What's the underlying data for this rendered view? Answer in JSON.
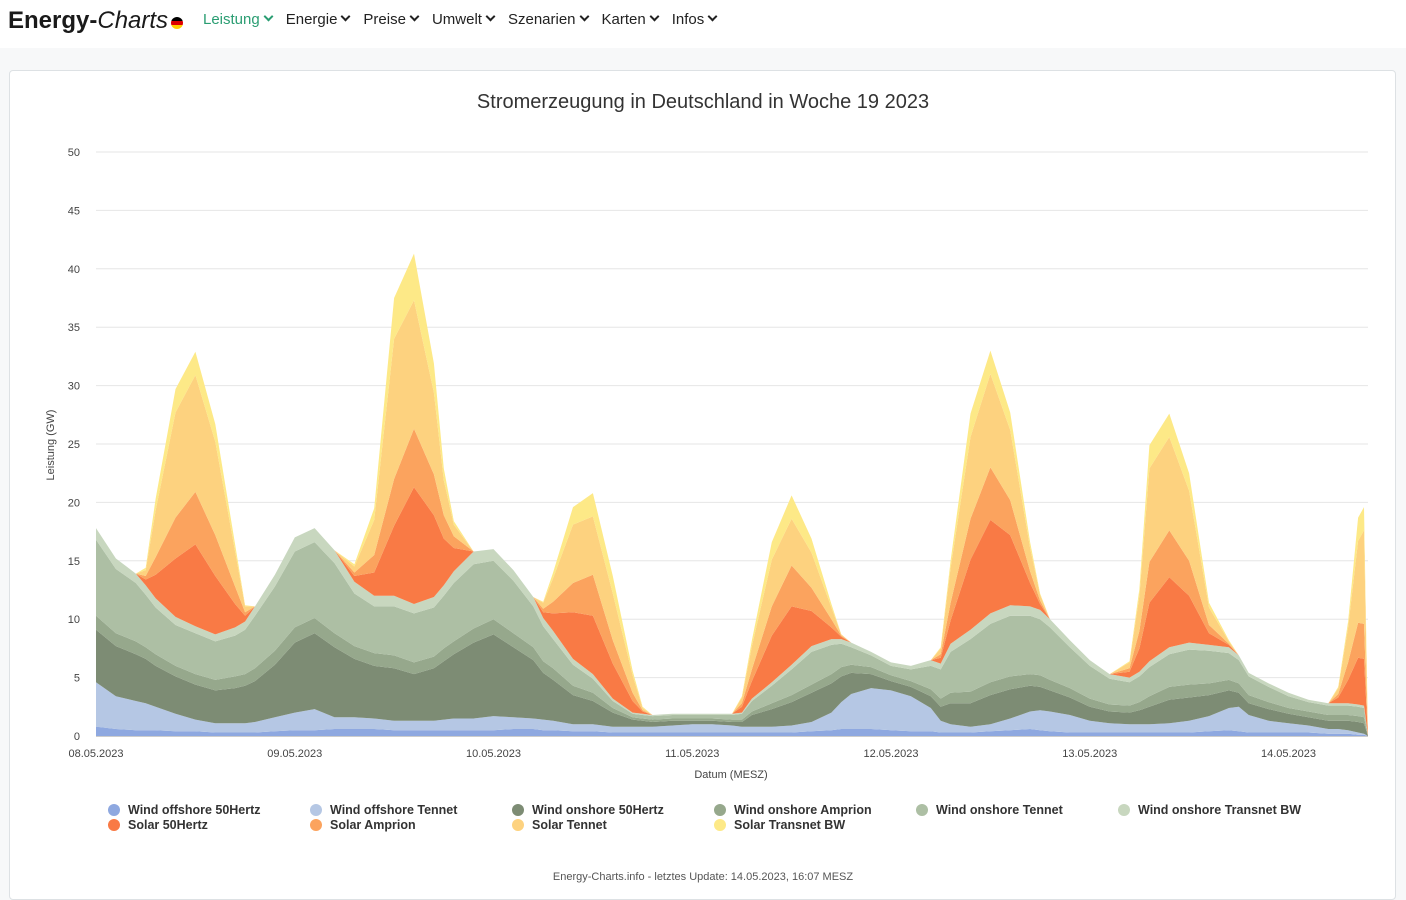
{
  "brand": {
    "bold": "Energy-",
    "italic": "Charts"
  },
  "nav": [
    {
      "label": "Leistung",
      "active": true
    },
    {
      "label": "Energie"
    },
    {
      "label": "Preise"
    },
    {
      "label": "Umwelt"
    },
    {
      "label": "Szenarien"
    },
    {
      "label": "Karten"
    },
    {
      "label": "Infos"
    }
  ],
  "footer": "Energy-Charts.info - letztes Update: 14.05.2023, 16:07 MESZ",
  "chart_data": {
    "type": "area",
    "title": "Stromerzeugung in Deutschland in Woche 19 2023",
    "xlabel": "Datum (MESZ)",
    "ylabel": "Leistung (GW)",
    "ylim": [
      0,
      50
    ],
    "yticks": [
      0,
      5,
      10,
      15,
      20,
      25,
      30,
      35,
      40,
      45,
      50
    ],
    "xlim": [
      0,
      6.4
    ],
    "xtick_labels": [
      "08.05.2023",
      "09.05.2023",
      "10.05.2023",
      "11.05.2023",
      "12.05.2023",
      "13.05.2023",
      "14.05.2023"
    ],
    "x": [
      0,
      0.1,
      0.2,
      0.25,
      0.3,
      0.4,
      0.5,
      0.6,
      0.7,
      0.75,
      0.8,
      0.9,
      1.0,
      1.1,
      1.2,
      1.3,
      1.4,
      1.5,
      1.6,
      1.7,
      1.75,
      1.8,
      1.9,
      2.0,
      2.1,
      2.2,
      2.25,
      2.3,
      2.4,
      2.5,
      2.6,
      2.7,
      2.75,
      2.8,
      2.9,
      3.0,
      3.1,
      3.2,
      3.25,
      3.3,
      3.4,
      3.5,
      3.6,
      3.7,
      3.75,
      3.8,
      3.9,
      4.0,
      4.1,
      4.2,
      4.25,
      4.3,
      4.4,
      4.5,
      4.6,
      4.7,
      4.75,
      4.8,
      4.9,
      5.0,
      5.1,
      5.2,
      5.25,
      5.3,
      5.4,
      5.5,
      5.6,
      5.7,
      5.75,
      5.8,
      5.9,
      6.0,
      6.1,
      6.2,
      6.25,
      6.3,
      6.35,
      6.38,
      6.4
    ],
    "series": [
      {
        "name": "Wind offshore 50Hertz",
        "color": "#8ea8e0",
        "values": [
          0.8,
          0.6,
          0.5,
          0.5,
          0.5,
          0.4,
          0.4,
          0.3,
          0.3,
          0.3,
          0.3,
          0.4,
          0.5,
          0.5,
          0.6,
          0.6,
          0.6,
          0.5,
          0.5,
          0.5,
          0.5,
          0.5,
          0.5,
          0.5,
          0.6,
          0.6,
          0.5,
          0.5,
          0.4,
          0.4,
          0.3,
          0.3,
          0.3,
          0.3,
          0.3,
          0.3,
          0.3,
          0.3,
          0.3,
          0.3,
          0.3,
          0.3,
          0.4,
          0.5,
          0.6,
          0.6,
          0.6,
          0.5,
          0.4,
          0.4,
          0.3,
          0.3,
          0.3,
          0.4,
          0.5,
          0.6,
          0.5,
          0.4,
          0.3,
          0.3,
          0.3,
          0.3,
          0.3,
          0.3,
          0.3,
          0.3,
          0.4,
          0.5,
          0.4,
          0.3,
          0.3,
          0.3,
          0.3,
          0.2,
          0.2,
          0.2,
          0.1,
          0.1,
          0
        ]
      },
      {
        "name": "Wind offshore Tennet",
        "color": "#b5c7e4",
        "values": [
          3.8,
          2.8,
          2.5,
          2.3,
          2.0,
          1.5,
          1.0,
          0.8,
          0.8,
          0.8,
          0.9,
          1.2,
          1.5,
          1.8,
          1.0,
          1.0,
          0.9,
          0.8,
          0.8,
          0.8,
          0.9,
          1.0,
          1.0,
          1.2,
          1.0,
          0.9,
          0.9,
          0.8,
          0.6,
          0.6,
          0.5,
          0.5,
          0.5,
          0.5,
          0.6,
          0.7,
          0.7,
          0.6,
          0.5,
          0.5,
          0.5,
          0.6,
          0.8,
          1.5,
          2.3,
          3.0,
          3.5,
          3.4,
          3.0,
          2.0,
          1.0,
          0.7,
          0.5,
          0.6,
          1.0,
          1.5,
          1.7,
          1.7,
          1.5,
          1.0,
          0.8,
          0.7,
          0.7,
          0.7,
          0.8,
          1.0,
          1.3,
          1.9,
          2.1,
          1.5,
          1.0,
          0.8,
          0.6,
          0.4,
          0.4,
          0.3,
          0.2,
          0.1,
          0
        ]
      },
      {
        "name": "Wind onshore 50Hertz",
        "color": "#7d8c74",
        "values": [
          4.5,
          4.3,
          4.0,
          3.8,
          3.5,
          3.2,
          3.0,
          2.8,
          3.0,
          3.2,
          3.5,
          4.5,
          6.0,
          6.5,
          6.0,
          5.0,
          4.5,
          4.5,
          4.0,
          4.5,
          5.0,
          5.5,
          6.5,
          7.0,
          6.0,
          5.0,
          4.0,
          3.5,
          2.5,
          2.0,
          1.2,
          0.6,
          0.5,
          0.4,
          0.4,
          0.3,
          0.3,
          0.3,
          0.4,
          1.0,
          1.5,
          2.0,
          2.5,
          2.5,
          2.2,
          1.8,
          1.2,
          0.8,
          0.8,
          1.0,
          1.2,
          1.8,
          2.0,
          2.5,
          2.5,
          2.2,
          2.0,
          1.8,
          1.5,
          1.2,
          1.0,
          1.0,
          1.2,
          1.5,
          2.0,
          2.0,
          1.8,
          1.5,
          1.2,
          1.0,
          1.0,
          0.8,
          0.7,
          0.7,
          0.7,
          0.8,
          0.9,
          0.9,
          0
        ]
      },
      {
        "name": "Wind onshore Amprion",
        "color": "#96a88c",
        "values": [
          1.2,
          1.1,
          1.1,
          1.0,
          1.0,
          0.9,
          0.9,
          0.9,
          1.0,
          1.0,
          1.1,
          1.2,
          1.3,
          1.3,
          1.2,
          1.1,
          1.1,
          1.1,
          1.0,
          1.0,
          1.1,
          1.1,
          1.2,
          1.3,
          1.2,
          1.1,
          1.0,
          1.0,
          0.8,
          0.7,
          0.4,
          0.2,
          0.2,
          0.2,
          0.2,
          0.2,
          0.2,
          0.2,
          0.2,
          0.3,
          0.5,
          0.6,
          0.7,
          0.8,
          0.8,
          0.7,
          0.6,
          0.5,
          0.5,
          0.6,
          0.7,
          0.9,
          1.0,
          1.1,
          1.1,
          1.0,
          1.0,
          0.9,
          0.8,
          0.7,
          0.6,
          0.6,
          0.7,
          0.9,
          1.1,
          1.1,
          1.0,
          0.9,
          0.8,
          0.7,
          0.6,
          0.5,
          0.5,
          0.5,
          0.5,
          0.5,
          0.5,
          0.5,
          0
        ]
      },
      {
        "name": "Wind onshore Tennet",
        "color": "#adbfa4",
        "values": [
          6.5,
          5.5,
          5.0,
          4.5,
          4.0,
          3.5,
          3.5,
          3.3,
          3.5,
          3.8,
          4.5,
          5.5,
          6.5,
          6.5,
          6.0,
          4.5,
          4.0,
          4.2,
          4.2,
          4.2,
          4.5,
          5.0,
          5.5,
          5.0,
          4.5,
          3.5,
          3.0,
          2.5,
          1.8,
          1.2,
          0.6,
          0.3,
          0.3,
          0.3,
          0.3,
          0.3,
          0.3,
          0.4,
          0.5,
          0.9,
          1.5,
          2.2,
          2.8,
          2.5,
          2.0,
          1.5,
          1.0,
          0.8,
          1.0,
          2.0,
          2.5,
          3.5,
          4.5,
          5.0,
          5.2,
          5.0,
          4.8,
          4.5,
          3.5,
          2.8,
          2.2,
          2.0,
          2.2,
          2.5,
          2.8,
          3.0,
          2.8,
          2.3,
          2.0,
          1.6,
          1.3,
          1.0,
          0.8,
          0.8,
          0.8,
          0.8,
          0.8,
          0.8,
          0
        ]
      },
      {
        "name": "Wind onshore Transnet BW",
        "color": "#c8d7bf",
        "values": [
          1.0,
          0.9,
          0.8,
          0.8,
          0.8,
          0.7,
          0.6,
          0.6,
          0.7,
          0.7,
          0.8,
          1.0,
          1.2,
          1.2,
          1.1,
          1.0,
          0.9,
          0.9,
          0.8,
          0.9,
          0.9,
          1.0,
          1.1,
          1.0,
          0.9,
          0.8,
          0.7,
          0.7,
          0.5,
          0.4,
          0.2,
          0.1,
          0.1,
          0.1,
          0.1,
          0.1,
          0.1,
          0.1,
          0.1,
          0.2,
          0.3,
          0.4,
          0.5,
          0.5,
          0.4,
          0.4,
          0.3,
          0.3,
          0.3,
          0.5,
          0.5,
          0.7,
          0.8,
          0.9,
          0.9,
          0.8,
          0.8,
          0.7,
          0.6,
          0.5,
          0.4,
          0.4,
          0.4,
          0.5,
          0.6,
          0.6,
          0.5,
          0.5,
          0.4,
          0.3,
          0.3,
          0.3,
          0.2,
          0.2,
          0.2,
          0.2,
          0.2,
          0.2,
          0
        ]
      },
      {
        "name": "Solar 50Hertz",
        "color": "#f97a45",
        "values": [
          0,
          0,
          0,
          0.5,
          2,
          5,
          7,
          5,
          2,
          0.5,
          0,
          0,
          0,
          0,
          0,
          0.5,
          2,
          6,
          10,
          7,
          4,
          2,
          0,
          0,
          0,
          0,
          0.5,
          1.5,
          4,
          5,
          3,
          1,
          0.2,
          0,
          0,
          0,
          0,
          0,
          0.5,
          1.5,
          4,
          5,
          3,
          1,
          0.2,
          0,
          0,
          0,
          0,
          0,
          0.5,
          2,
          6,
          8,
          6,
          2,
          0.5,
          0,
          0,
          0,
          0,
          0.5,
          2,
          5,
          6,
          4,
          1,
          0.2,
          0,
          0,
          0,
          0,
          0,
          0,
          0.5,
          2,
          4,
          4,
          0
        ]
      },
      {
        "name": "Solar Amprion",
        "color": "#fba35e",
        "values": [
          0,
          0,
          0,
          0.3,
          1.5,
          3.5,
          4.5,
          3.5,
          1.5,
          0.3,
          0,
          0,
          0,
          0,
          0,
          0.3,
          1.5,
          4,
          5,
          3.5,
          2,
          1,
          0,
          0,
          0,
          0,
          0.3,
          1,
          2.5,
          3.5,
          2,
          0.7,
          0.1,
          0,
          0,
          0,
          0,
          0,
          0.3,
          1,
          2.5,
          3.5,
          2,
          0.7,
          0.1,
          0,
          0,
          0,
          0,
          0,
          0.3,
          1.5,
          3.5,
          4.5,
          3,
          1,
          0.3,
          0,
          0,
          0,
          0,
          0.3,
          1.5,
          3.5,
          4,
          3,
          0.7,
          0.1,
          0,
          0,
          0,
          0,
          0,
          0,
          0.3,
          1.5,
          3,
          3,
          0
        ]
      },
      {
        "name": "Solar Tennet",
        "color": "#fdd27f",
        "values": [
          0,
          0,
          0,
          0.5,
          4,
          9,
          10,
          8,
          3,
          0.5,
          0,
          0,
          0,
          0,
          0,
          0.5,
          3,
          12,
          11,
          7,
          3,
          1,
          0,
          0,
          0,
          0,
          0.5,
          2,
          5,
          5,
          4,
          1.5,
          0.2,
          0,
          0,
          0,
          0,
          0,
          0.5,
          2,
          4,
          4,
          3,
          1,
          0.1,
          0,
          0,
          0,
          0,
          0,
          0.5,
          3,
          7,
          8,
          6,
          2,
          0.5,
          0,
          0,
          0,
          0,
          0.5,
          3,
          8,
          8,
          6,
          1.5,
          0.2,
          0,
          0,
          0,
          0,
          0,
          0,
          0.5,
          3,
          7,
          8,
          0
        ]
      },
      {
        "name": "Solar Transnet BW",
        "color": "#fde987",
        "values": [
          0,
          0,
          0,
          0.2,
          1.0,
          2.0,
          2.0,
          1.5,
          0.6,
          0.1,
          0,
          0,
          0,
          0,
          0,
          0.2,
          1,
          3.5,
          4,
          2.5,
          1,
          0.3,
          0,
          0,
          0,
          0,
          0.1,
          0.5,
          1.5,
          2,
          1.5,
          0.4,
          0.1,
          0,
          0,
          0,
          0,
          0,
          0.1,
          0.5,
          1.5,
          2,
          1.2,
          0.3,
          0,
          0,
          0,
          0,
          0,
          0,
          0.1,
          0.6,
          2,
          2,
          1.5,
          0.5,
          0.1,
          0,
          0,
          0,
          0,
          0.1,
          0.6,
          2,
          2,
          1.5,
          0.4,
          0.1,
          0,
          0,
          0,
          0,
          0,
          0,
          0.1,
          0.5,
          2,
          2,
          0
        ]
      }
    ]
  }
}
